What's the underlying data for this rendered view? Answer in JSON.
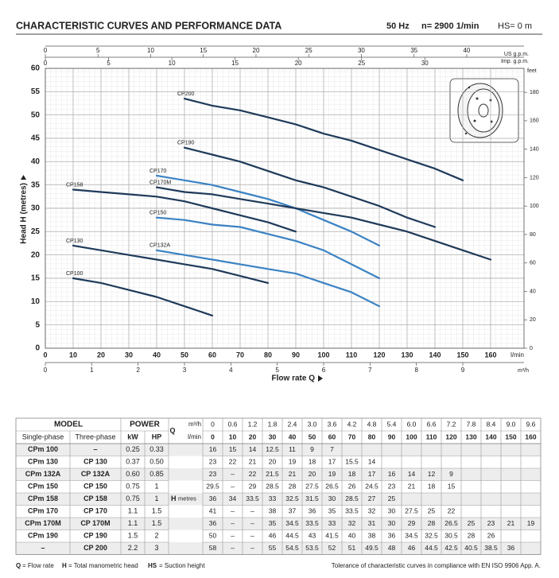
{
  "header": {
    "title": "CHARACTERISTIC CURVES AND PERFORMANCE DATA",
    "frequency": "50 Hz",
    "speed": "n= 2900 1/min",
    "suction": "HS= 0 m"
  },
  "chart_data": {
    "type": "line",
    "x_label": "Flow rate Q",
    "y_label": "Head H (metres)",
    "x_unit": "l/min",
    "xlim": [
      0,
      172
    ],
    "xticks": [
      0,
      10,
      20,
      30,
      40,
      50,
      60,
      70,
      80,
      90,
      100,
      110,
      120,
      130,
      140,
      150,
      160
    ],
    "ylim": [
      0,
      60
    ],
    "yticks": [
      0,
      5,
      10,
      15,
      20,
      25,
      30,
      35,
      40,
      45,
      50,
      55,
      60
    ],
    "y2_label": "feet",
    "y2lim": [
      0,
      196.85
    ],
    "y2ticks": [
      0,
      20,
      40,
      60,
      80,
      100,
      120,
      140,
      160,
      180
    ],
    "top_axes": [
      {
        "label": "US g.p.m.",
        "xlim": [
          0,
          45.44
        ],
        "xticks": [
          0,
          5,
          10,
          15,
          20,
          25,
          30,
          35,
          40
        ]
      },
      {
        "label": "Imp. g.p.m.",
        "xlim": [
          0,
          37.84
        ],
        "xticks": [
          0,
          5,
          10,
          15,
          20,
          25,
          30
        ]
      }
    ],
    "bottom_axis": {
      "label": "m³/h",
      "xlim": [
        0,
        10.32
      ],
      "xticks": [
        0,
        1,
        2,
        3,
        4,
        5,
        6,
        7,
        8,
        9
      ]
    },
    "grid": true,
    "series": [
      {
        "name": "CP100",
        "color": "#1f3a5a",
        "x": [
          10,
          20,
          30,
          40,
          50,
          60
        ],
        "values": [
          15,
          14,
          12.5,
          11,
          9,
          7
        ]
      },
      {
        "name": "CP130",
        "color": "#1f3a5a",
        "x": [
          10,
          20,
          30,
          40,
          50,
          60,
          70,
          80
        ],
        "values": [
          22,
          21,
          20,
          19,
          18,
          17,
          15.5,
          14
        ]
      },
      {
        "name": "CP132A",
        "color": "#3b82c4",
        "x": [
          40,
          50,
          60,
          70,
          80,
          90,
          100,
          110,
          120
        ],
        "values": [
          21,
          20,
          19,
          18,
          17,
          16,
          14,
          12,
          9
        ]
      },
      {
        "name": "CP150",
        "color": "#3b82c4",
        "x": [
          40,
          50,
          60,
          70,
          80,
          90,
          100,
          110,
          120
        ],
        "values": [
          28,
          27.5,
          26.5,
          26,
          24.5,
          23,
          21,
          18,
          15
        ]
      },
      {
        "name": "CP158",
        "color": "#1f3a5a",
        "x": [
          10,
          20,
          30,
          40,
          50,
          60,
          70,
          80,
          90
        ],
        "values": [
          34,
          33.5,
          33,
          32.5,
          31.5,
          30,
          28.5,
          27,
          25
        ]
      },
      {
        "name": "CP170",
        "color": "#3b82c4",
        "x": [
          40,
          50,
          60,
          70,
          80,
          90,
          100,
          110,
          120
        ],
        "values": [
          37,
          36,
          35,
          33.5,
          32,
          30,
          27.5,
          25,
          22
        ]
      },
      {
        "name": "CP170M",
        "color": "#1f3a5a",
        "x": [
          40,
          50,
          60,
          70,
          80,
          90,
          100,
          110,
          120,
          130,
          140,
          150,
          160
        ],
        "values": [
          34.5,
          33.5,
          33,
          32,
          31,
          30,
          29,
          28,
          26.5,
          25,
          23,
          21,
          19
        ]
      },
      {
        "name": "CP190",
        "color": "#1f3a5a",
        "x": [
          50,
          60,
          70,
          80,
          90,
          100,
          110,
          120,
          130,
          140
        ],
        "values": [
          43,
          41.5,
          40,
          38,
          36,
          34.5,
          32.5,
          30.5,
          28,
          26
        ]
      },
      {
        "name": "CP200",
        "color": "#1f3a5a",
        "x": [
          50,
          60,
          70,
          80,
          90,
          100,
          110,
          120,
          130,
          140,
          150
        ],
        "values": [
          53.5,
          52,
          51,
          49.5,
          48,
          46,
          44.5,
          42.5,
          40.5,
          38.5,
          36
        ]
      }
    ]
  },
  "table": {
    "header": {
      "model": "MODEL",
      "power": "POWER",
      "single_phase": "Single-phase",
      "three_phase": "Three-phase",
      "kw": "kW",
      "hp": "HP",
      "q": "Q",
      "m3h": "m³/h",
      "lmin": "l/min",
      "h": "H",
      "metres": "metres"
    },
    "m3h": [
      "0",
      "0.6",
      "1.2",
      "1.8",
      "2.4",
      "3.0",
      "3.6",
      "4.2",
      "4.8",
      "5.4",
      "6.0",
      "6.6",
      "7.2",
      "7.8",
      "8.4",
      "9.0",
      "9.6"
    ],
    "lmin": [
      0,
      10,
      20,
      30,
      40,
      50,
      60,
      70,
      80,
      90,
      100,
      110,
      120,
      130,
      140,
      150,
      160
    ],
    "rows": [
      {
        "single": "CPm 100",
        "three": "–",
        "kw": "0.25",
        "hp": "0.33",
        "h": [
          "16",
          "15",
          "14",
          "12.5",
          "11",
          "9",
          "7"
        ]
      },
      {
        "single": "CPm 130",
        "three": "CP 130",
        "kw": "0.37",
        "hp": "0.50",
        "h": [
          "23",
          "22",
          "21",
          "20",
          "19",
          "18",
          "17",
          "15.5",
          "14"
        ]
      },
      {
        "single": "CPm 132A",
        "three": "CP 132A",
        "kw": "0.60",
        "hp": "0.85",
        "h": [
          "23",
          "–",
          "22",
          "21.5",
          "21",
          "20",
          "19",
          "18",
          "17",
          "16",
          "14",
          "12",
          "9"
        ]
      },
      {
        "single": "CPm 150",
        "three": "CP 150",
        "kw": "0.75",
        "hp": "1",
        "h": [
          "29.5",
          "–",
          "29",
          "28.5",
          "28",
          "27.5",
          "26.5",
          "26",
          "24.5",
          "23",
          "21",
          "18",
          "15"
        ]
      },
      {
        "single": "CPm 158",
        "three": "CP 158",
        "kw": "0.75",
        "hp": "1",
        "h": [
          "36",
          "34",
          "33.5",
          "33",
          "32.5",
          "31.5",
          "30",
          "28.5",
          "27",
          "25"
        ]
      },
      {
        "single": "CPm 170",
        "three": "CP 170",
        "kw": "1.1",
        "hp": "1.5",
        "h": [
          "41",
          "–",
          "–",
          "38",
          "37",
          "36",
          "35",
          "33.5",
          "32",
          "30",
          "27.5",
          "25",
          "22"
        ]
      },
      {
        "single": "CPm 170M",
        "three": "CP 170M",
        "kw": "1.1",
        "hp": "1.5",
        "h": [
          "36",
          "–",
          "–",
          "35",
          "34.5",
          "33.5",
          "33",
          "32",
          "31",
          "30",
          "29",
          "28",
          "26.5",
          "25",
          "23",
          "21",
          "19"
        ]
      },
      {
        "single": "CPm 190",
        "three": "CP 190",
        "kw": "1.5",
        "hp": "2",
        "h": [
          "50",
          "–",
          "–",
          "46",
          "44.5",
          "43",
          "41.5",
          "40",
          "38",
          "36",
          "34.5",
          "32.5",
          "30.5",
          "28",
          "26"
        ]
      },
      {
        "single": "–",
        "three": "CP 200",
        "kw": "2.2",
        "hp": "3",
        "h": [
          "58",
          "–",
          "–",
          "55",
          "54.5",
          "53.5",
          "52",
          "51",
          "49.5",
          "48",
          "46",
          "44.5",
          "42.5",
          "40.5",
          "38.5",
          "36"
        ]
      }
    ]
  },
  "footer": {
    "legend": [
      {
        "key": "Q",
        "text": "= Flow rate"
      },
      {
        "key": "H",
        "text": "= Total manometric head"
      },
      {
        "key": "HS",
        "text": "= Suction height"
      }
    ],
    "tolerance": "Tolerance of characteristic curves in compliance with EN ISO 9906 App. A."
  }
}
